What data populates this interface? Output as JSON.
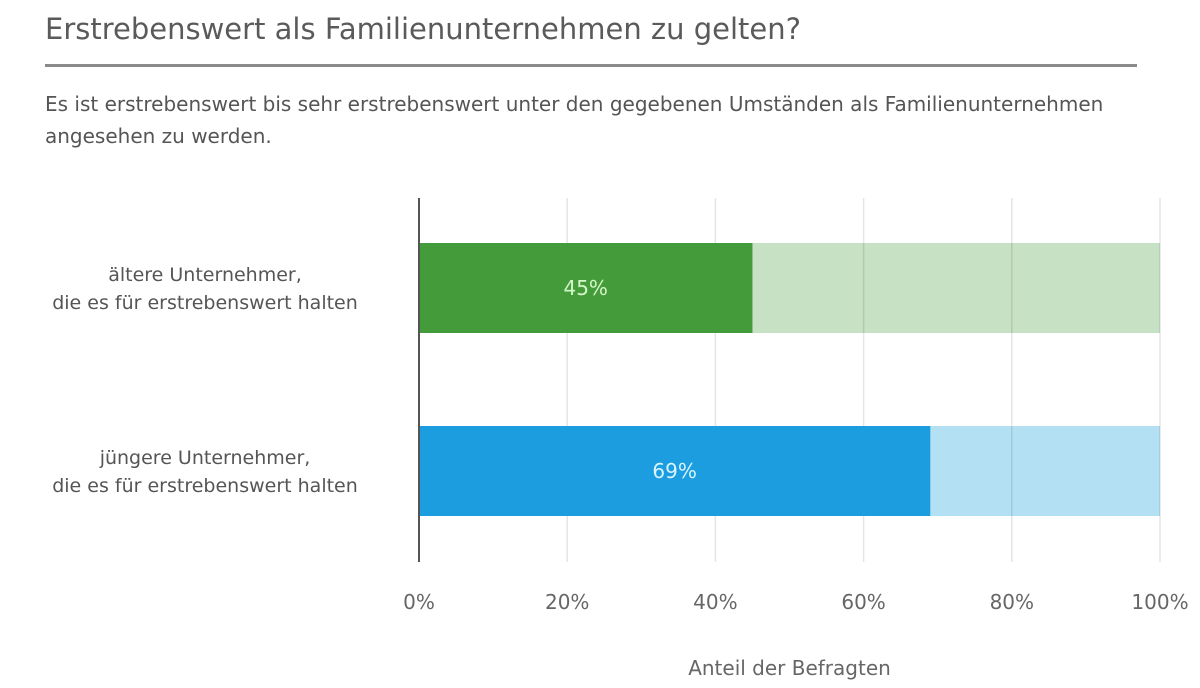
{
  "chart_data": {
    "type": "bar",
    "orientation": "horizontal",
    "stacked_to_100": true,
    "title": "Erstrebenswert als Familienunternehmen zu gelten?",
    "subtitle": "Es ist erstrebenswert bis sehr erstrebenswert unter den gegebenen Umständen als Familienunternehmen angesehen zu werden.",
    "categories": [
      [
        "ältere  Unternehmer,",
        "die es für erstrebenswert halten"
      ],
      [
        "jüngere Unternehmer,",
        "die es für erstrebenswert halten"
      ]
    ],
    "values": [
      45,
      69
    ],
    "data_labels": [
      "45%",
      "69%"
    ],
    "colors": [
      "#449b3a",
      "#1b9ddf"
    ],
    "remainder_colors": [
      "#c6e1c4",
      "#b3e0f3"
    ],
    "label_colors": [
      "#d4f5c8",
      "#d8f4ff"
    ],
    "xlabel": "Anteil der Befragten",
    "xlim": [
      0,
      100
    ],
    "xticks": [
      0,
      20,
      40,
      60,
      80,
      100
    ],
    "xtick_labels": [
      "0%",
      "20%",
      "40%",
      "60%",
      "80%",
      "100%"
    ],
    "grid": true,
    "legend": "none"
  }
}
